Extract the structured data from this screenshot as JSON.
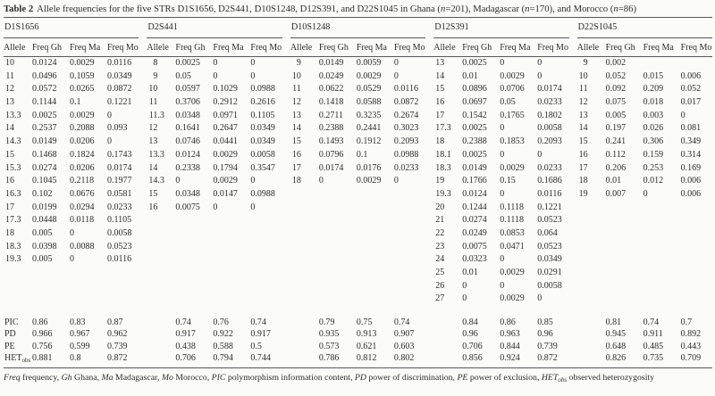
{
  "table": {
    "label": "Table 2",
    "caption_segments": [
      {
        "text": "Allele frequencies for the five STRs D1S1656, D2S441, D10S1248, D12S391, and D22S1045 in Ghana ("
      },
      {
        "text": "n",
        "italic": true
      },
      {
        "text": "=201), Madagascar ("
      },
      {
        "text": "n",
        "italic": true
      },
      {
        "text": "=170), and Morocco ("
      },
      {
        "text": "n",
        "italic": true
      },
      {
        "text": "=86)"
      }
    ],
    "column_headers": [
      "Allele",
      "Freq Gh",
      "Freq Ma",
      "Freq Mo"
    ],
    "groups": [
      {
        "locus": "D1S1656",
        "rows": [
          [
            "10",
            "0.0124",
            "0.0029",
            "0.0116"
          ],
          [
            "11",
            "0.0496",
            "0.1059",
            "0.0349"
          ],
          [
            "12",
            "0.0572",
            "0.0265",
            "0.0872"
          ],
          [
            "13",
            "0.1144",
            "0.1",
            "0.1221"
          ],
          [
            "13.3",
            "0.0025",
            "0.0029",
            "0"
          ],
          [
            "14",
            "0.2537",
            "0.2088",
            "0.093"
          ],
          [
            "14.3",
            "0.0149",
            "0.0206",
            "0"
          ],
          [
            "15",
            "0.1468",
            "0.1824",
            "0.1743"
          ],
          [
            "15.3",
            "0.0274",
            "0.0206",
            "0.0174"
          ],
          [
            "16",
            "0.1045",
            "0.2118",
            "0.1977"
          ],
          [
            "16.3",
            "0.102",
            "0.0676",
            "0.0581"
          ],
          [
            "17",
            "0.0199",
            "0.0294",
            "0.0233"
          ],
          [
            "17.3",
            "0.0448",
            "0.0118",
            "0.1105"
          ],
          [
            "18",
            "0.005",
            "0",
            "0.0058"
          ],
          [
            "18.3",
            "0.0398",
            "0.0088",
            "0.0523"
          ],
          [
            "19.3",
            "0.005",
            "0",
            "0.0116"
          ]
        ]
      },
      {
        "locus": "D2S441",
        "rows": [
          [
            "8",
            "0.0025",
            "0",
            "0"
          ],
          [
            "9",
            "0.05",
            "0",
            "0"
          ],
          [
            "10",
            "0.0597",
            "0.1029",
            "0.0988"
          ],
          [
            "11",
            "0.3706",
            "0.2912",
            "0.2616"
          ],
          [
            "11.3",
            "0.0348",
            "0.0971",
            "0.1105"
          ],
          [
            "12",
            "0.1641",
            "0.2647",
            "0.0349"
          ],
          [
            "13",
            "0.0746",
            "0.0441",
            "0.0349"
          ],
          [
            "13.3",
            "0.0124",
            "0.0029",
            "0.0058"
          ],
          [
            "14",
            "0.2338",
            "0.1794",
            "0.3547"
          ],
          [
            "14.3",
            "0",
            "0.0029",
            "0"
          ],
          [
            "15",
            "0.0348",
            "0.0147",
            "0.0988"
          ],
          [
            "16",
            "0.0075",
            "0",
            "0"
          ]
        ]
      },
      {
        "locus": "D10S1248",
        "rows": [
          [
            "9",
            "0.0149",
            "0.0059",
            "0"
          ],
          [
            "10",
            "0.0249",
            "0.0029",
            "0"
          ],
          [
            "11",
            "0.0622",
            "0.0529",
            "0.0116"
          ],
          [
            "12",
            "0.1418",
            "0.0588",
            "0.0872"
          ],
          [
            "13",
            "0.2711",
            "0.3235",
            "0.2674"
          ],
          [
            "14",
            "0.2388",
            "0.2441",
            "0.3023"
          ],
          [
            "15",
            "0.1493",
            "0.1912",
            "0.2093"
          ],
          [
            "16",
            "0.0796",
            "0.1",
            "0.0988"
          ],
          [
            "17",
            "0.0174",
            "0.0176",
            "0.0233"
          ],
          [
            "18",
            "0",
            "0.0029",
            "0"
          ]
        ]
      },
      {
        "locus": "D12S391",
        "rows": [
          [
            "13",
            "0.0025",
            "0",
            "0"
          ],
          [
            "14",
            "0.01",
            "0.0029",
            "0"
          ],
          [
            "15",
            "0.0896",
            "0.0706",
            "0.0174"
          ],
          [
            "16",
            "0.0697",
            "0.05",
            "0.0233"
          ],
          [
            "17",
            "0.1542",
            "0.1765",
            "0.1802"
          ],
          [
            "17.3",
            "0.0025",
            "0",
            "0.0058"
          ],
          [
            "18",
            "0.2388",
            "0.1853",
            "0.2093"
          ],
          [
            "18.1",
            "0.0025",
            "0",
            "0"
          ],
          [
            "18.3",
            "0.0149",
            "0.0029",
            "0.0233"
          ],
          [
            "19",
            "0.1766",
            "0.15",
            "0.1686"
          ],
          [
            "19.3",
            "0.0124",
            "0",
            "0.0116"
          ],
          [
            "20",
            "0.1244",
            "0.1118",
            "0.1221"
          ],
          [
            "21",
            "0.0274",
            "0.1118",
            "0.0523"
          ],
          [
            "22",
            "0.0249",
            "0.0853",
            "0.064"
          ],
          [
            "23",
            "0.0075",
            "0.0471",
            "0.0523"
          ],
          [
            "24",
            "0.0323",
            "0",
            "0.0349"
          ],
          [
            "25",
            "0.01",
            "0.0029",
            "0.0291"
          ],
          [
            "26",
            "0",
            "0",
            "0.0058"
          ],
          [
            "27",
            "0",
            "0.0029",
            "0"
          ]
        ]
      },
      {
        "locus": "D22S1045",
        "rows": [
          [
            "9",
            "0.002",
            "",
            ""
          ],
          [
            "10",
            "0.052",
            "0.015",
            "0.006"
          ],
          [
            "11",
            "0.092",
            "0.209",
            "0.052"
          ],
          [
            "12",
            "0.075",
            "0.018",
            "0.017"
          ],
          [
            "13",
            "0.005",
            "0.003",
            "0"
          ],
          [
            "14",
            "0.197",
            "0.026",
            "0.081"
          ],
          [
            "15",
            "0.241",
            "0.306",
            "0.349"
          ],
          [
            "16",
            "0.112",
            "0.159",
            "0.314"
          ],
          [
            "17",
            "0.206",
            "0.253",
            "0.169"
          ],
          [
            "18",
            "0.01",
            "0.012",
            "0.006"
          ],
          [
            "19",
            "0.007",
            "0",
            "0.006"
          ]
        ]
      }
    ],
    "summary_rows": [
      {
        "label": "PIC",
        "values": [
          [
            "0.86",
            "0.83",
            "0.87"
          ],
          [
            "0.74",
            "0.76",
            "0.74"
          ],
          [
            "0.79",
            "0.75",
            "0.74"
          ],
          [
            "0.84",
            "0.86",
            "0.85"
          ],
          [
            "0.81",
            "0.74",
            "0.7"
          ]
        ]
      },
      {
        "label": "PD",
        "values": [
          [
            "0.966",
            "0.967",
            "0.962"
          ],
          [
            "0.917",
            "0.922",
            "0.917"
          ],
          [
            "0.935",
            "0.913",
            "0.907"
          ],
          [
            "0.96",
            "0.963",
            "0.96"
          ],
          [
            "0.945",
            "0.911",
            "0.892"
          ]
        ]
      },
      {
        "label": "PE",
        "values": [
          [
            "0.756",
            "0.599",
            "0.739"
          ],
          [
            "0.438",
            "0.588",
            "0.5"
          ],
          [
            "0.573",
            "0.621",
            "0.603"
          ],
          [
            "0.706",
            "0.844",
            "0.739"
          ],
          [
            "0.648",
            "0.485",
            "0.443"
          ]
        ]
      },
      {
        "label": "HET",
        "label_sub": "obs",
        "values": [
          [
            "0.881",
            "0.8",
            "0.872"
          ],
          [
            "0.706",
            "0.794",
            "0.744"
          ],
          [
            "0.786",
            "0.812",
            "0.802"
          ],
          [
            "0.856",
            "0.924",
            "0.872"
          ],
          [
            "0.826",
            "0.735",
            "0.709"
          ]
        ]
      }
    ],
    "footnote_segments": [
      {
        "text": "Freq",
        "italic": true
      },
      {
        "text": " frequency, "
      },
      {
        "text": "Gh",
        "italic": true
      },
      {
        "text": " Ghana, "
      },
      {
        "text": "Ma",
        "italic": true
      },
      {
        "text": " Madagascar, "
      },
      {
        "text": "Mo",
        "italic": true
      },
      {
        "text": " Morocco, "
      },
      {
        "text": "PIC",
        "italic": true
      },
      {
        "text": " polymorphism information content, "
      },
      {
        "text": "PD",
        "italic": true
      },
      {
        "text": " power of discrimination, "
      },
      {
        "text": "PE",
        "italic": true
      },
      {
        "text": " power of exclusion, "
      },
      {
        "text": "HET",
        "italic": true
      },
      {
        "text": "obs",
        "italic": true,
        "sub": true
      },
      {
        "text": " observed heterozygosity"
      }
    ]
  }
}
